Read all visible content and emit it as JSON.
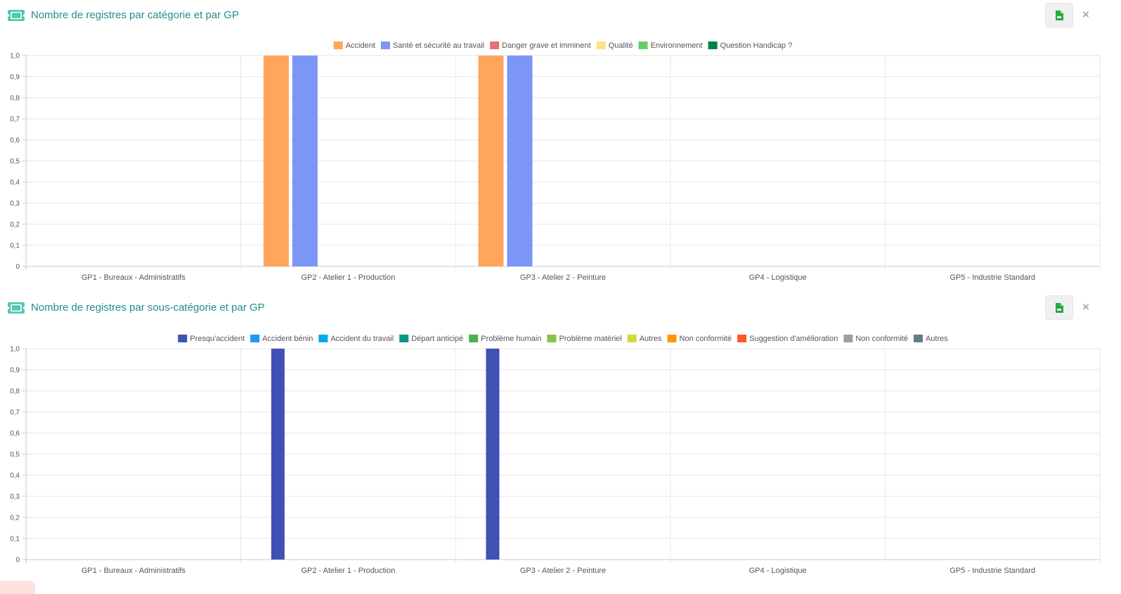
{
  "panels": [
    {
      "title": "Nombre de registres par catégorie et par GP",
      "icon": "ticket-icon",
      "csv_icon": "csv-file-icon",
      "close_label": "×",
      "accent_color": "#1f8f8a"
    },
    {
      "title": "Nombre de registres par sous-catégorie et par GP",
      "icon": "ticket-icon",
      "csv_icon": "csv-file-icon",
      "close_label": "×",
      "accent_color": "#1f8f8a"
    }
  ],
  "chart_data": [
    {
      "type": "bar",
      "title": "Nombre de registres par catégorie et par GP",
      "categories": [
        "GP1 - Bureaux - Administratifs",
        "GP2 - Atelier 1 - Production",
        "GP3 - Atelier 2 - Peinture",
        "GP4 - Logistique",
        "GP5 - Industrie Standard"
      ],
      "ylim": [
        0,
        1
      ],
      "yticks": [
        "0",
        "0,1",
        "0,2",
        "0,3",
        "0,4",
        "0,5",
        "0,6",
        "0,7",
        "0,8",
        "0,9",
        "1,0"
      ],
      "grid": true,
      "legend_position": "top-center",
      "series": [
        {
          "name": "Accident",
          "color": "#ffa55c",
          "values": [
            0,
            1,
            1,
            0,
            0
          ]
        },
        {
          "name": "Santé et sécurité au travail",
          "color": "#7b96f5",
          "values": [
            0,
            1,
            1,
            0,
            0
          ]
        },
        {
          "name": "Danger grave et imminent",
          "color": "#e57373",
          "values": [
            0,
            0,
            0,
            0,
            0
          ]
        },
        {
          "name": "Qualité",
          "color": "#ffe082",
          "values": [
            0,
            0,
            0,
            0,
            0
          ]
        },
        {
          "name": "Environnement",
          "color": "#66cc66",
          "values": [
            0,
            0,
            0,
            0,
            0
          ]
        },
        {
          "name": "Question Handicap ?",
          "color": "#00814a",
          "values": [
            0,
            0,
            0,
            0,
            0
          ]
        }
      ]
    },
    {
      "type": "bar",
      "title": "Nombre de registres par sous-catégorie et par GP",
      "categories": [
        "GP1 - Bureaux - Administratifs",
        "GP2 - Atelier 1 - Production",
        "GP3 - Atelier 2 - Peinture",
        "GP4 - Logistique",
        "GP5 - Industrie Standard"
      ],
      "ylim": [
        0,
        1
      ],
      "yticks": [
        "0",
        "0,1",
        "0,2",
        "0,3",
        "0,4",
        "0,5",
        "0,6",
        "0,7",
        "0,8",
        "0,9",
        "1,0"
      ],
      "grid": true,
      "legend_position": "top-center",
      "series": [
        {
          "name": "Presqu'accident",
          "color": "#3f51b5",
          "values": [
            0,
            1,
            1,
            0,
            0
          ]
        },
        {
          "name": "Accident bénin",
          "color": "#2196f3",
          "values": [
            0,
            0,
            0,
            0,
            0
          ]
        },
        {
          "name": "Accident du travail",
          "color": "#03a9f4",
          "values": [
            0,
            0,
            0,
            0,
            0
          ]
        },
        {
          "name": "Départ anticipé",
          "color": "#009688",
          "values": [
            0,
            0,
            0,
            0,
            0
          ]
        },
        {
          "name": "Problème humain",
          "color": "#4caf50",
          "values": [
            0,
            0,
            0,
            0,
            0
          ]
        },
        {
          "name": "Problème matériel",
          "color": "#8bc34a",
          "values": [
            0,
            0,
            0,
            0,
            0
          ]
        },
        {
          "name": "Autres",
          "color": "#cddc39",
          "values": [
            0,
            0,
            0,
            0,
            0
          ]
        },
        {
          "name": "Non conformité",
          "color": "#ff9800",
          "values": [
            0,
            0,
            0,
            0,
            0
          ]
        },
        {
          "name": "Suggestion d'amélioration",
          "color": "#ff5722",
          "values": [
            0,
            0,
            0,
            0,
            0
          ]
        },
        {
          "name": "Non conformité",
          "color": "#9e9e9e",
          "values": [
            0,
            0,
            0,
            0,
            0
          ]
        },
        {
          "name": "Autres",
          "color": "#607d8b",
          "values": [
            0,
            0,
            0,
            0,
            0
          ]
        }
      ]
    }
  ]
}
